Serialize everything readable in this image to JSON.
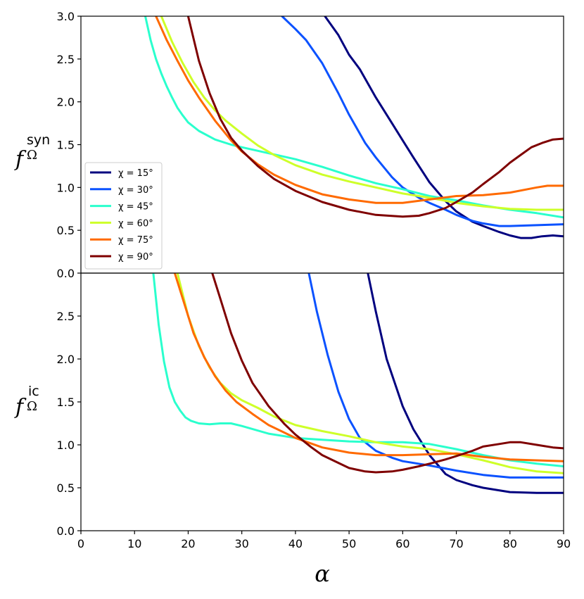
{
  "chart_data": [
    {
      "type": "line",
      "panel": "top",
      "ylabel": "f",
      "ylabel_sup": "syn",
      "ylabel_sub": "Ω",
      "xlabel": "",
      "xlim": [
        0,
        90
      ],
      "ylim": [
        0,
        3.0
      ],
      "xticks": [
        0,
        10,
        20,
        30,
        40,
        50,
        60,
        70,
        80,
        90
      ],
      "yticks": [
        "0.0",
        "0.5",
        "1.0",
        "1.5",
        "2.0",
        "2.5",
        "3.0"
      ],
      "legend": "center-left",
      "series": [
        {
          "name": "χ = 15°",
          "color": "#00007f",
          "x": [
            45.5,
            48,
            50,
            52,
            55,
            58,
            60,
            62,
            65,
            68,
            70,
            73,
            75,
            78,
            80,
            82,
            84,
            86,
            88,
            90
          ],
          "y": [
            3.0,
            2.78,
            2.55,
            2.38,
            2.05,
            1.75,
            1.55,
            1.35,
            1.06,
            0.84,
            0.72,
            0.6,
            0.55,
            0.48,
            0.44,
            0.41,
            0.41,
            0.43,
            0.44,
            0.43
          ]
        },
        {
          "name": "χ = 30°",
          "color": "#0b52ff",
          "x": [
            37.5,
            40,
            42,
            45,
            48,
            50,
            53,
            55,
            58,
            60,
            63,
            65,
            68,
            70,
            73,
            75,
            78,
            80,
            85,
            90
          ],
          "y": [
            3.0,
            2.85,
            2.72,
            2.45,
            2.1,
            1.85,
            1.52,
            1.35,
            1.12,
            1.0,
            0.88,
            0.82,
            0.74,
            0.68,
            0.61,
            0.58,
            0.55,
            0.55,
            0.56,
            0.57
          ]
        },
        {
          "name": "χ = 45°",
          "color": "#2affcd",
          "x": [
            12,
            13,
            14,
            15,
            16,
            17,
            18,
            19,
            20,
            22,
            25,
            28,
            30,
            35,
            40,
            45,
            50,
            55,
            60,
            65,
            70,
            75,
            80,
            85,
            90
          ],
          "y": [
            3.0,
            2.72,
            2.5,
            2.33,
            2.18,
            2.05,
            1.93,
            1.84,
            1.76,
            1.66,
            1.56,
            1.5,
            1.47,
            1.4,
            1.33,
            1.24,
            1.14,
            1.05,
            0.98,
            0.9,
            0.85,
            0.79,
            0.74,
            0.7,
            0.65
          ]
        },
        {
          "name": "χ = 60°",
          "color": "#ceff29",
          "x": [
            15,
            17,
            19,
            21,
            23,
            25,
            27,
            30,
            33,
            36,
            40,
            45,
            50,
            55,
            60,
            65,
            70,
            75,
            80,
            85,
            90
          ],
          "y": [
            3.0,
            2.7,
            2.45,
            2.23,
            2.05,
            1.9,
            1.78,
            1.63,
            1.49,
            1.38,
            1.26,
            1.15,
            1.07,
            1.0,
            0.93,
            0.88,
            0.82,
            0.78,
            0.75,
            0.74,
            0.74
          ]
        },
        {
          "name": "χ = 75°",
          "color": "#ff6a00",
          "x": [
            14,
            16,
            18,
            20,
            22,
            25,
            28,
            30,
            33,
            36,
            40,
            45,
            50,
            55,
            60,
            65,
            70,
            75,
            80,
            85,
            87,
            90
          ],
          "y": [
            3.0,
            2.72,
            2.48,
            2.25,
            2.05,
            1.78,
            1.55,
            1.42,
            1.27,
            1.15,
            1.03,
            0.92,
            0.86,
            0.82,
            0.82,
            0.86,
            0.9,
            0.91,
            0.94,
            1.0,
            1.02,
            1.02
          ]
        },
        {
          "name": "χ = 90°",
          "color": "#7f0000",
          "x": [
            20,
            22,
            24,
            26,
            28,
            30,
            33,
            36,
            40,
            45,
            50,
            55,
            60,
            63,
            65,
            68,
            70,
            73,
            75,
            78,
            80,
            82,
            84,
            86,
            88,
            90
          ],
          "y": [
            3.0,
            2.48,
            2.1,
            1.8,
            1.58,
            1.43,
            1.25,
            1.1,
            0.96,
            0.83,
            0.74,
            0.68,
            0.66,
            0.67,
            0.7,
            0.76,
            0.83,
            0.94,
            1.04,
            1.18,
            1.29,
            1.38,
            1.47,
            1.52,
            1.56,
            1.57
          ]
        }
      ]
    },
    {
      "type": "line",
      "panel": "bottom",
      "ylabel": "f",
      "ylabel_sup": "ic",
      "ylabel_sub": "Ω",
      "xlabel": "α",
      "xlim": [
        0,
        90
      ],
      "ylim": [
        0,
        3.0
      ],
      "xticks": [
        0,
        10,
        20,
        30,
        40,
        50,
        60,
        70,
        80,
        90
      ],
      "yticks": [
        "0.0",
        "0.5",
        "1.0",
        "1.5",
        "2.0",
        "2.5"
      ],
      "series": [
        {
          "name": "χ = 15°",
          "color": "#00007f",
          "x": [
            53.5,
            55,
            57,
            60,
            62,
            65,
            68,
            70,
            73,
            75,
            80,
            85,
            90
          ],
          "y": [
            3.0,
            2.55,
            2.0,
            1.45,
            1.18,
            0.88,
            0.66,
            0.59,
            0.53,
            0.5,
            0.45,
            0.44,
            0.44
          ]
        },
        {
          "name": "χ = 30°",
          "color": "#0b52ff",
          "x": [
            42.5,
            44,
            46,
            48,
            50,
            52,
            55,
            58,
            60,
            65,
            70,
            75,
            80,
            85,
            90
          ],
          "y": [
            3.0,
            2.55,
            2.05,
            1.62,
            1.3,
            1.08,
            0.93,
            0.85,
            0.81,
            0.76,
            0.7,
            0.65,
            0.62,
            0.62,
            0.62
          ]
        },
        {
          "name": "χ = 45°",
          "color": "#2affcd",
          "x": [
            13.5,
            14.5,
            15.5,
            16.5,
            17.5,
            18.5,
            19.5,
            20.5,
            22,
            24,
            26,
            28,
            30,
            35,
            40,
            45,
            50,
            55,
            60,
            65,
            70,
            75,
            80,
            85,
            90
          ],
          "y": [
            3.0,
            2.4,
            1.97,
            1.67,
            1.5,
            1.4,
            1.32,
            1.28,
            1.25,
            1.24,
            1.25,
            1.25,
            1.22,
            1.13,
            1.08,
            1.06,
            1.04,
            1.03,
            1.03,
            1.01,
            0.95,
            0.88,
            0.82,
            0.78,
            0.75
          ]
        },
        {
          "name": "χ = 60°",
          "color": "#ceff29",
          "x": [
            18,
            20,
            22,
            24,
            26,
            28,
            30,
            33,
            36,
            40,
            45,
            50,
            55,
            60,
            65,
            70,
            75,
            80,
            85,
            90
          ],
          "y": [
            3.0,
            2.5,
            2.15,
            1.9,
            1.72,
            1.6,
            1.52,
            1.43,
            1.33,
            1.23,
            1.16,
            1.1,
            1.03,
            0.98,
            0.95,
            0.89,
            0.82,
            0.74,
            0.69,
            0.67
          ]
        },
        {
          "name": "χ = 75°",
          "color": "#ff6a00",
          "x": [
            17.5,
            19,
            21,
            23,
            25,
            27,
            29,
            32,
            35,
            40,
            45,
            50,
            55,
            60,
            65,
            70,
            75,
            80,
            85,
            90
          ],
          "y": [
            3.0,
            2.7,
            2.3,
            2.02,
            1.8,
            1.63,
            1.5,
            1.36,
            1.23,
            1.08,
            0.97,
            0.91,
            0.88,
            0.88,
            0.89,
            0.9,
            0.86,
            0.83,
            0.82,
            0.81
          ]
        },
        {
          "name": "χ = 90°",
          "color": "#7f0000",
          "x": [
            24.5,
            26,
            28,
            30,
            32,
            35,
            38,
            40,
            43,
            45,
            48,
            50,
            53,
            55,
            58,
            60,
            63,
            65,
            68,
            70,
            73,
            75,
            78,
            80,
            82,
            85,
            88,
            90
          ],
          "y": [
            3.0,
            2.7,
            2.3,
            1.98,
            1.72,
            1.45,
            1.24,
            1.12,
            0.97,
            0.88,
            0.79,
            0.73,
            0.69,
            0.68,
            0.69,
            0.71,
            0.75,
            0.78,
            0.83,
            0.87,
            0.93,
            0.98,
            1.01,
            1.03,
            1.03,
            1.0,
            0.97,
            0.96
          ]
        }
      ]
    }
  ]
}
